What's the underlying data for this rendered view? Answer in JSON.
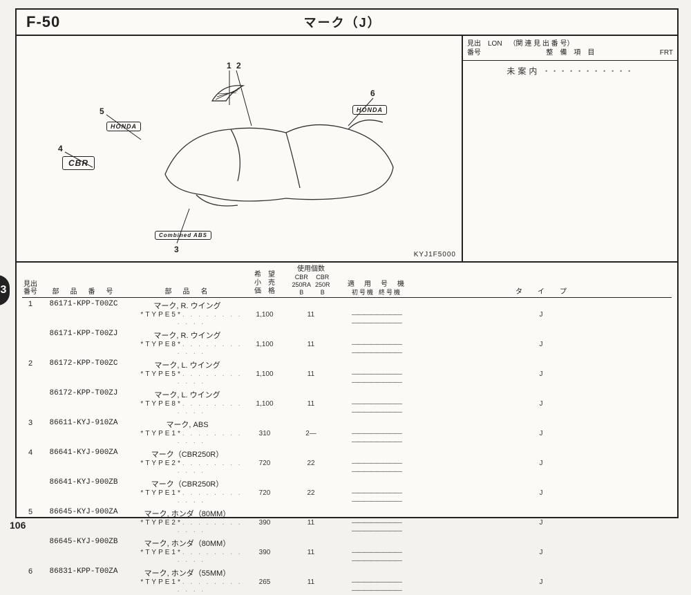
{
  "header": {
    "code": "F-50",
    "title": "マーク（J）"
  },
  "sidebox": {
    "line1a": "見出",
    "line1b": "LON",
    "line1c": "（関 連 見 出 番 号）",
    "line2a": "番号",
    "line2b": "整　備　項　目",
    "line2c": "FRT",
    "body": "未案内"
  },
  "diagram": {
    "code": "KYJ1F5000",
    "callouts": [
      "1",
      "2",
      "3",
      "4",
      "5",
      "6"
    ],
    "badges": {
      "honda_l": "HONDA",
      "honda_r": "HONDA",
      "cbr": "CBR",
      "abs": "Combined ABS"
    }
  },
  "table": {
    "head": {
      "ref": "見出\n番号",
      "pn": "部　品　番　号",
      "nm": "部　品　名",
      "prc": "希　望\n小　売\n価　格",
      "use": "使用個数",
      "use_sub_a": "CBR\n250RA\nB",
      "use_sub_b": "CBR\n250R\nB",
      "mdl": "適　用　号　機",
      "mdl_a": "初号機",
      "mdl_b": "終号機",
      "typ": "タ　イ　プ"
    },
    "rows": [
      {
        "ref": "1",
        "pn": "86171-KPP-T00ZC",
        "nm": "マーク, R. ウイング",
        "note": "*TYPE5*",
        "price": "1,100",
        "a": "1",
        "b": "1",
        "typ": "J"
      },
      {
        "ref": "",
        "pn": "86171-KPP-T00ZJ",
        "nm": "マーク, R. ウイング",
        "note": "*TYPE8*",
        "price": "1,100",
        "a": "1",
        "b": "1",
        "typ": "J"
      },
      {
        "ref": "2",
        "pn": "86172-KPP-T00ZC",
        "nm": "マーク, L. ウイング",
        "note": "*TYPE5*",
        "price": "1,100",
        "a": "1",
        "b": "1",
        "typ": "J"
      },
      {
        "ref": "",
        "pn": "86172-KPP-T00ZJ",
        "nm": "マーク, L. ウイング",
        "note": "*TYPE8*",
        "price": "1,100",
        "a": "1",
        "b": "1",
        "typ": "J"
      },
      {
        "ref": "3",
        "pn": "86611-KYJ-910ZA",
        "nm": "マーク, ABS",
        "note": "*TYPE1*",
        "price": "310",
        "a": "2",
        "b": "—",
        "typ": "J"
      },
      {
        "ref": "4",
        "pn": "86641-KYJ-900ZA",
        "nm": "マーク（CBR250R）",
        "note": "*TYPE2*",
        "price": "720",
        "a": "2",
        "b": "2",
        "typ": "J"
      },
      {
        "ref": "",
        "pn": "86641-KYJ-900ZB",
        "nm": "マーク（CBR250R）",
        "note": "*TYPE1*",
        "price": "720",
        "a": "2",
        "b": "2",
        "typ": "J"
      },
      {
        "ref": "5",
        "pn": "86645-KYJ-900ZA",
        "nm": "マーク, ホンダ（80MM）",
        "note": "*TYPE2*",
        "price": "390",
        "a": "1",
        "b": "1",
        "typ": "J"
      },
      {
        "ref": "",
        "pn": "86645-KYJ-900ZB",
        "nm": "マーク, ホンダ（80MM）",
        "note": "*TYPE1*",
        "price": "390",
        "a": "1",
        "b": "1",
        "typ": "J"
      },
      {
        "ref": "6",
        "pn": "86831-KPP-T00ZA",
        "nm": "マーク, ホンダ（55MM）",
        "note": "*TYPE1*",
        "price": "265",
        "a": "1",
        "b": "1",
        "typ": "J"
      }
    ],
    "dash": "————————   ————————"
  },
  "pagenum": "106",
  "tab": "3"
}
